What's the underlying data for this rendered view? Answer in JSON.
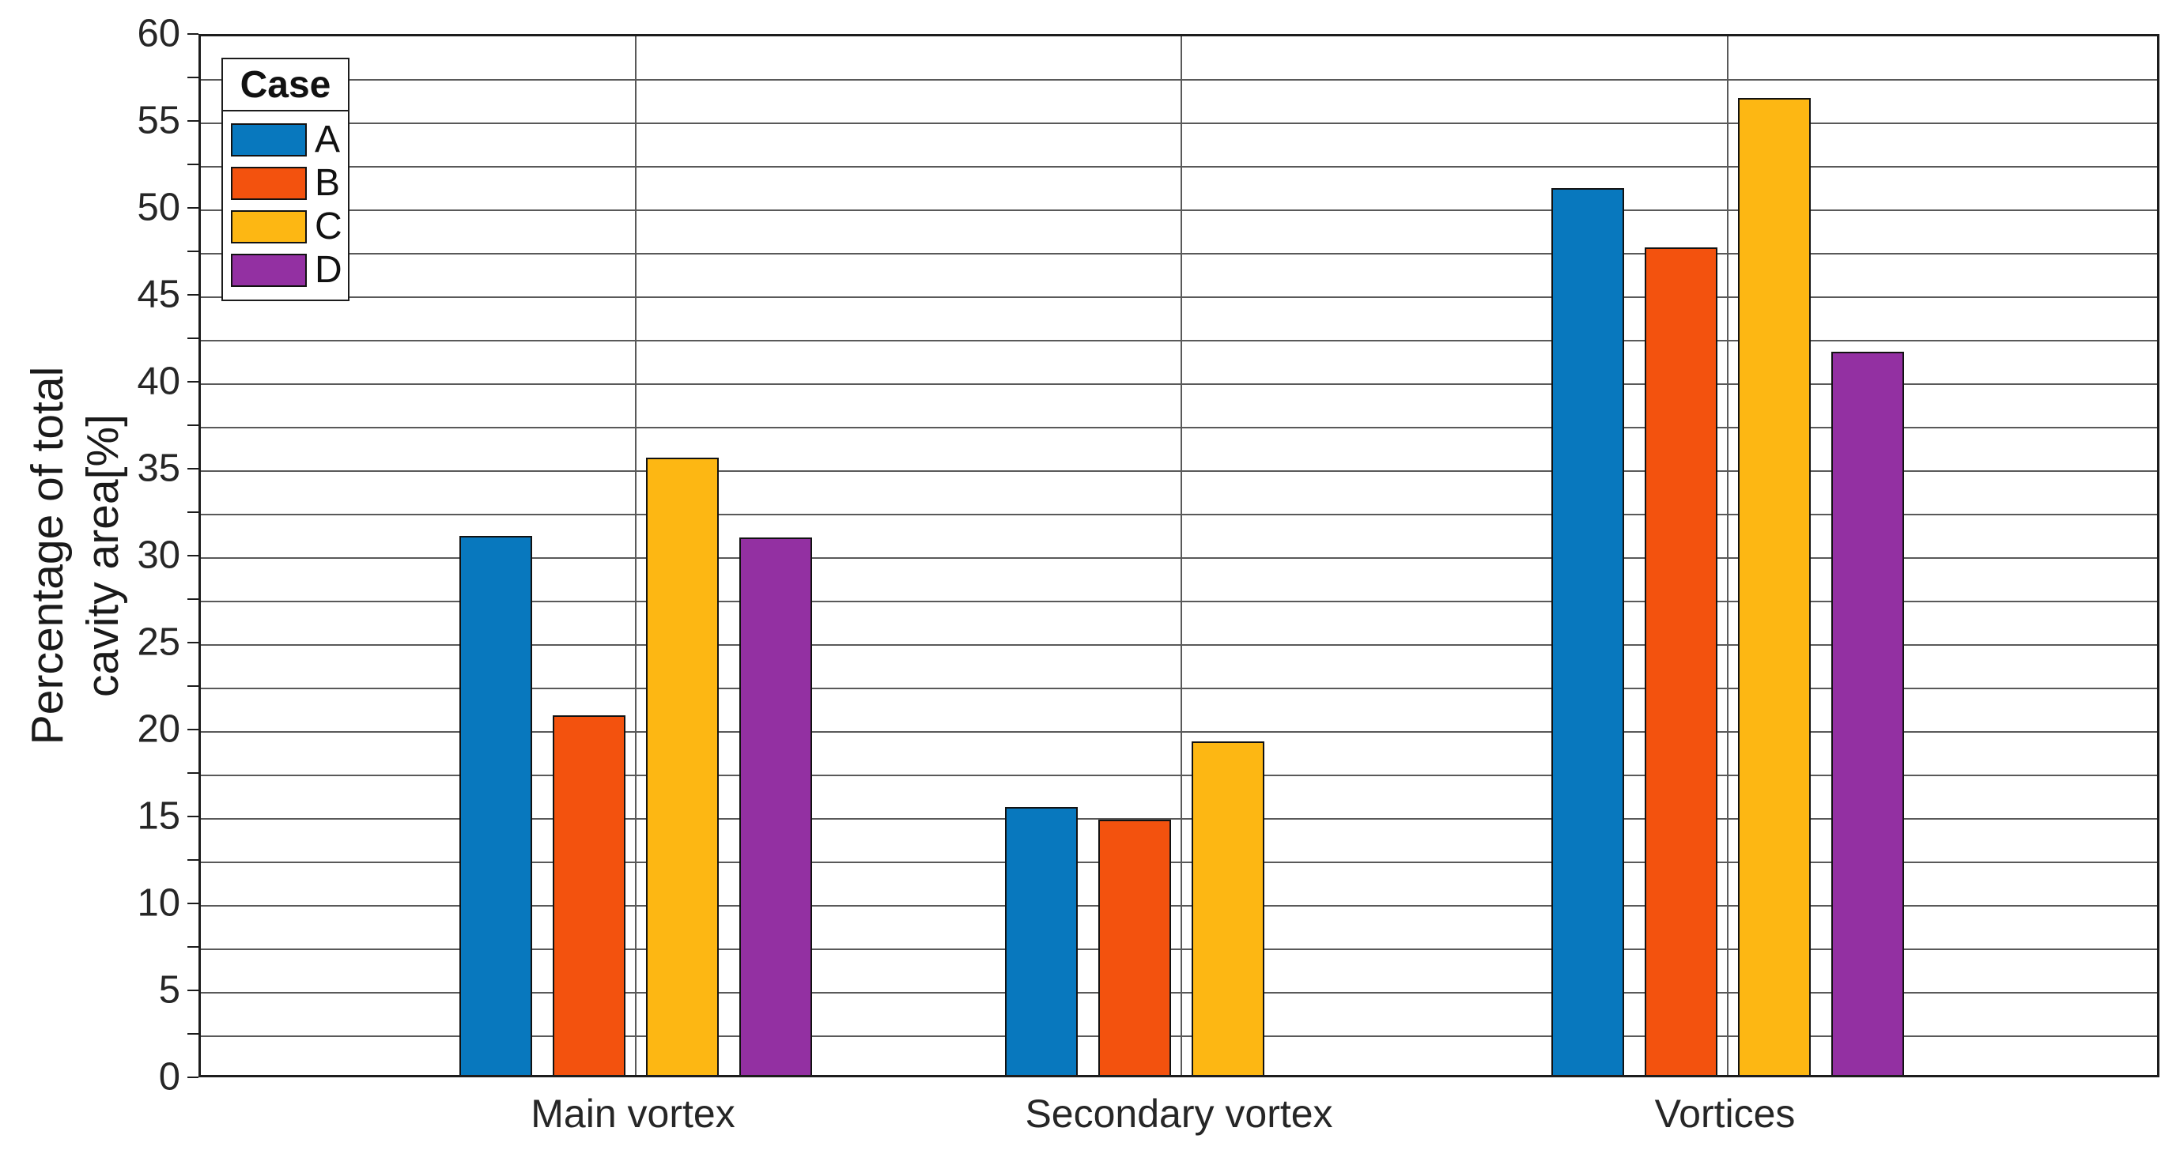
{
  "figure": {
    "background": "#ffffff"
  },
  "chart_data": {
    "type": "bar",
    "title": "",
    "categories": [
      "Main vortex",
      "Secondary vortex",
      "Vortices"
    ],
    "series": [
      {
        "name": "A",
        "color": "#0878BE",
        "values": [
          31.0,
          15.4,
          51.0
        ]
      },
      {
        "name": "B",
        "color": "#F3520E",
        "values": [
          20.7,
          14.7,
          47.6
        ]
      },
      {
        "name": "C",
        "color": "#FDB713",
        "values": [
          35.5,
          19.2,
          56.2
        ]
      },
      {
        "name": "D",
        "color": "#9330A2",
        "values": [
          30.9,
          null,
          41.6
        ]
      }
    ],
    "ylabel": "Percentage of total cavity area[%]",
    "ylabel_line1": "Percentage of total",
    "ylabel_line2": "cavity area[%]",
    "xlabel": "",
    "ylim": [
      0,
      60
    ],
    "yticks": [
      0,
      5,
      10,
      15,
      20,
      25,
      30,
      35,
      40,
      45,
      50,
      55,
      60
    ],
    "ytick_labels": [
      "0",
      "5",
      "10",
      "15",
      "20",
      "25",
      "30",
      "35",
      "40",
      "45",
      "50",
      "55",
      "60"
    ],
    "grid": "on",
    "grid_minor_step": 2.5,
    "legend": {
      "title": "Case",
      "labels": [
        "A",
        "B",
        "C",
        "D"
      ],
      "position": "top-left-inside"
    }
  }
}
